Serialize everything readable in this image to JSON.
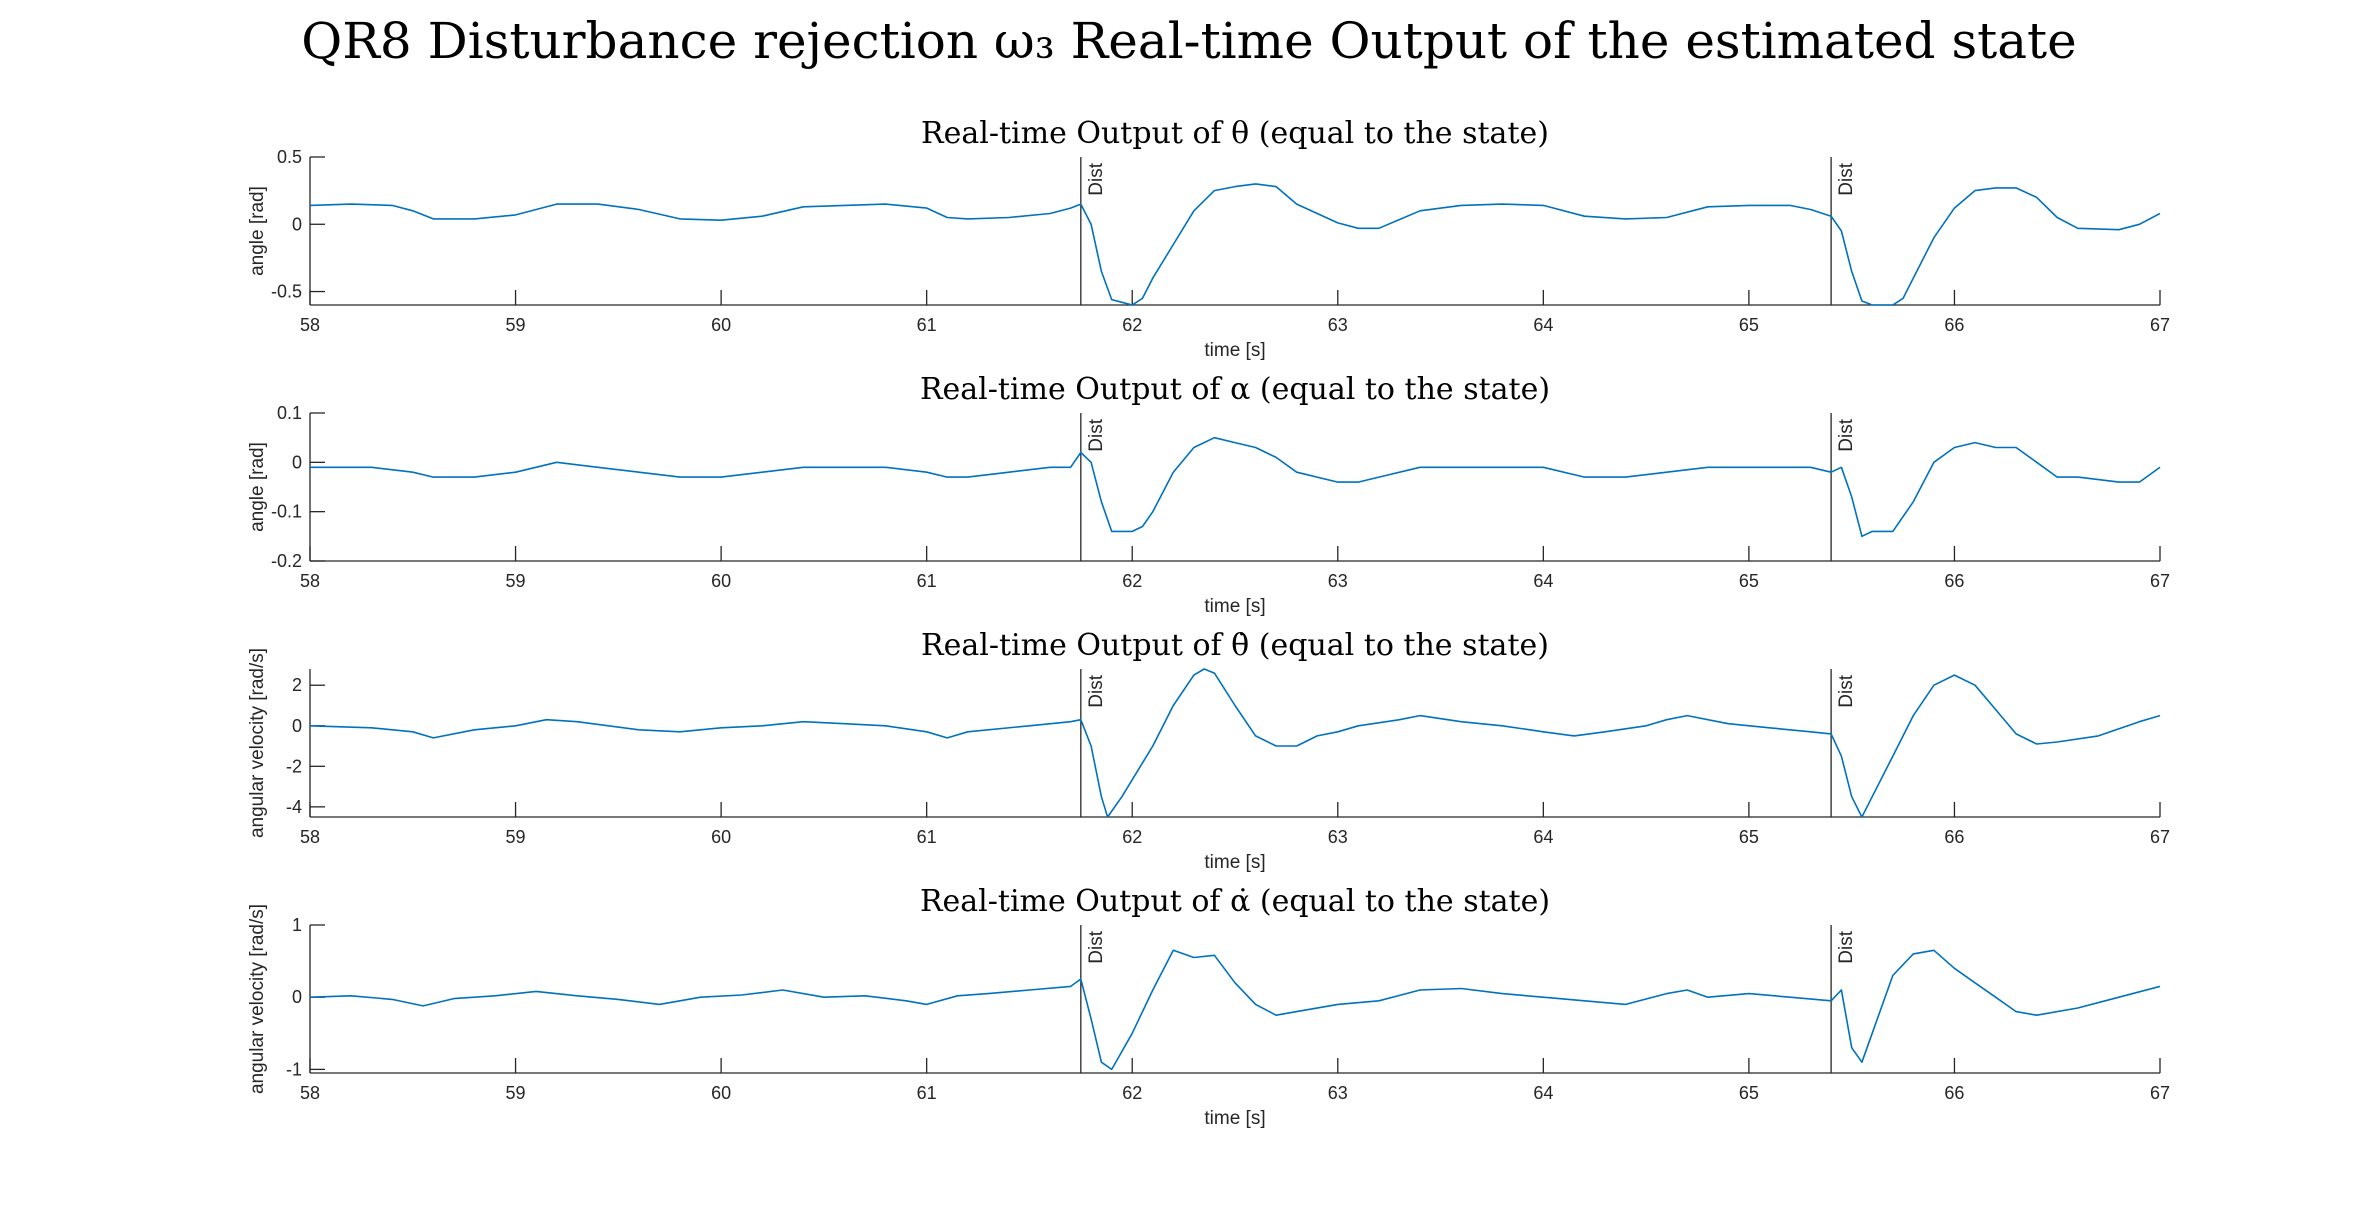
{
  "figure": {
    "suptitle": "QR8 Disturbance rejection ω₃ Real-time Output of the estimated state"
  },
  "colors": {
    "trace": "#0072BD",
    "axes": "#262626"
  },
  "chart_data": [
    {
      "type": "line",
      "title": "Real-time Output of θ (equal to the state)",
      "xlabel": "time [s]",
      "ylabel": "angle [rad]",
      "xlim": [
        58,
        67
      ],
      "ylim": [
        -0.6,
        0.5
      ],
      "xticks": [
        58,
        59,
        60,
        61,
        62,
        63,
        64,
        65,
        66,
        67
      ],
      "yticks": [
        0.5,
        0,
        -0.5
      ],
      "ytick_labels": [
        "0.5",
        "0",
        "-0.5"
      ],
      "annotations": [
        {
          "x": 61.75,
          "text": "Dist"
        },
        {
          "x": 65.4,
          "text": "Dist"
        }
      ],
      "series": [
        {
          "x": [
            58.0,
            58.2,
            58.4,
            58.5,
            58.6,
            58.8,
            59.0,
            59.2,
            59.4,
            59.6,
            59.8,
            60.0,
            60.2,
            60.4,
            60.6,
            60.8,
            61.0,
            61.1,
            61.2,
            61.4,
            61.6,
            61.7,
            61.75,
            61.8,
            61.85,
            61.9,
            61.95,
            62.0,
            62.05,
            62.1,
            62.2,
            62.3,
            62.4,
            62.5,
            62.6,
            62.7,
            62.8,
            63.0,
            63.1,
            63.2,
            63.4,
            63.6,
            63.8,
            64.0,
            64.2,
            64.4,
            64.6,
            64.8,
            65.0,
            65.2,
            65.3,
            65.4,
            65.45,
            65.5,
            65.55,
            65.6,
            65.7,
            65.75,
            65.8,
            65.9,
            66.0,
            66.1,
            66.2,
            66.3,
            66.4,
            66.5,
            66.6,
            66.8,
            66.9,
            67.0
          ],
          "y": [
            0.14,
            0.15,
            0.14,
            0.1,
            0.04,
            0.04,
            0.07,
            0.15,
            0.15,
            0.11,
            0.04,
            0.03,
            0.06,
            0.13,
            0.14,
            0.15,
            0.12,
            0.05,
            0.04,
            0.05,
            0.08,
            0.12,
            0.15,
            0.0,
            -0.35,
            -0.56,
            -0.58,
            -0.6,
            -0.55,
            -0.4,
            -0.15,
            0.1,
            0.25,
            0.28,
            0.3,
            0.28,
            0.15,
            0.01,
            -0.03,
            -0.03,
            0.1,
            0.14,
            0.15,
            0.14,
            0.06,
            0.04,
            0.05,
            0.13,
            0.14,
            0.14,
            0.11,
            0.06,
            -0.05,
            -0.35,
            -0.57,
            -0.6,
            -0.6,
            -0.55,
            -0.4,
            -0.1,
            0.12,
            0.25,
            0.27,
            0.27,
            0.2,
            0.05,
            -0.03,
            -0.04,
            0.0,
            0.08
          ]
        }
      ]
    },
    {
      "type": "line",
      "title": "Real-time Output of α (equal to the state)",
      "xlabel": "time [s]",
      "ylabel": "angle [rad]",
      "xlim": [
        58,
        67
      ],
      "ylim": [
        -0.2,
        0.1
      ],
      "xticks": [
        58,
        59,
        60,
        61,
        62,
        63,
        64,
        65,
        66,
        67
      ],
      "yticks": [
        0.1,
        0,
        -0.1,
        -0.2
      ],
      "ytick_labels": [
        "0.1",
        "0",
        "-0.1",
        "-0.2"
      ],
      "annotations": [
        {
          "x": 61.75,
          "text": "Dist"
        },
        {
          "x": 65.4,
          "text": "Dist"
        }
      ],
      "series": [
        {
          "x": [
            58.0,
            58.3,
            58.5,
            58.6,
            58.8,
            59.0,
            59.2,
            59.4,
            59.6,
            59.8,
            60.0,
            60.2,
            60.4,
            60.6,
            60.8,
            61.0,
            61.1,
            61.2,
            61.4,
            61.6,
            61.7,
            61.75,
            61.8,
            61.85,
            61.9,
            62.0,
            62.05,
            62.1,
            62.2,
            62.3,
            62.4,
            62.5,
            62.6,
            62.7,
            62.8,
            63.0,
            63.1,
            63.2,
            63.4,
            63.6,
            63.8,
            64.0,
            64.2,
            64.4,
            64.6,
            64.8,
            65.0,
            65.2,
            65.3,
            65.4,
            65.45,
            65.5,
            65.55,
            65.6,
            65.7,
            65.8,
            65.9,
            66.0,
            66.1,
            66.2,
            66.3,
            66.4,
            66.5,
            66.6,
            66.8,
            66.9,
            67.0
          ],
          "y": [
            -0.01,
            -0.01,
            -0.02,
            -0.03,
            -0.03,
            -0.02,
            0.0,
            -0.01,
            -0.02,
            -0.03,
            -0.03,
            -0.02,
            -0.01,
            -0.01,
            -0.01,
            -0.02,
            -0.03,
            -0.03,
            -0.02,
            -0.01,
            -0.01,
            0.02,
            0.0,
            -0.08,
            -0.14,
            -0.14,
            -0.13,
            -0.1,
            -0.02,
            0.03,
            0.05,
            0.04,
            0.03,
            0.01,
            -0.02,
            -0.04,
            -0.04,
            -0.03,
            -0.01,
            -0.01,
            -0.01,
            -0.01,
            -0.03,
            -0.03,
            -0.02,
            -0.01,
            -0.01,
            -0.01,
            -0.01,
            -0.02,
            -0.01,
            -0.07,
            -0.15,
            -0.14,
            -0.14,
            -0.08,
            0.0,
            0.03,
            0.04,
            0.03,
            0.03,
            0.0,
            -0.03,
            -0.03,
            -0.04,
            -0.04,
            -0.01
          ]
        }
      ]
    },
    {
      "type": "line",
      "title": "Real-time Output of θ̇ (equal to the state)",
      "xlabel": "time [s]",
      "ylabel": "angular velocity [rad/s]",
      "xlim": [
        58,
        67
      ],
      "ylim": [
        -4.5,
        2.8
      ],
      "xticks": [
        58,
        59,
        60,
        61,
        62,
        63,
        64,
        65,
        66,
        67
      ],
      "yticks": [
        2,
        0,
        -2,
        -4
      ],
      "ytick_labels": [
        "2",
        "0",
        "-2",
        "-4"
      ],
      "annotations": [
        {
          "x": 61.75,
          "text": "Dist"
        },
        {
          "x": 65.4,
          "text": "Dist"
        }
      ],
      "series": [
        {
          "x": [
            58.0,
            58.3,
            58.5,
            58.6,
            58.8,
            59.0,
            59.15,
            59.3,
            59.6,
            59.8,
            60.0,
            60.2,
            60.4,
            60.6,
            60.8,
            61.0,
            61.1,
            61.2,
            61.5,
            61.7,
            61.75,
            61.8,
            61.85,
            61.88,
            61.95,
            62.1,
            62.2,
            62.3,
            62.35,
            62.4,
            62.5,
            62.6,
            62.7,
            62.8,
            62.9,
            63.0,
            63.1,
            63.3,
            63.4,
            63.6,
            63.8,
            64.0,
            64.15,
            64.3,
            64.5,
            64.6,
            64.7,
            64.9,
            65.1,
            65.3,
            65.4,
            65.45,
            65.5,
            65.55,
            65.6,
            65.7,
            65.8,
            65.9,
            66.0,
            66.1,
            66.2,
            66.3,
            66.4,
            66.5,
            66.7,
            66.9,
            67.0
          ],
          "y": [
            0.0,
            -0.1,
            -0.3,
            -0.6,
            -0.2,
            0.0,
            0.3,
            0.2,
            -0.2,
            -0.3,
            -0.1,
            0.0,
            0.2,
            0.1,
            0.0,
            -0.3,
            -0.6,
            -0.3,
            0.0,
            0.2,
            0.3,
            -1.0,
            -3.5,
            -4.5,
            -3.5,
            -1.0,
            1.0,
            2.5,
            2.8,
            2.6,
            1.0,
            -0.5,
            -1.0,
            -1.0,
            -0.5,
            -0.3,
            0.0,
            0.3,
            0.5,
            0.2,
            0.0,
            -0.3,
            -0.5,
            -0.3,
            0.0,
            0.3,
            0.5,
            0.1,
            -0.1,
            -0.3,
            -0.4,
            -1.5,
            -3.5,
            -4.5,
            -3.5,
            -1.5,
            0.5,
            2.0,
            2.5,
            2.0,
            0.8,
            -0.4,
            -0.9,
            -0.8,
            -0.5,
            0.2,
            0.5
          ]
        }
      ]
    },
    {
      "type": "line",
      "title": "Real-time Output of α̇ (equal to the state)",
      "xlabel": "time [s]",
      "ylabel": "angular velocity [rad/s]",
      "xlim": [
        58,
        67
      ],
      "ylim": [
        -1.05,
        1.0
      ],
      "xticks": [
        58,
        59,
        60,
        61,
        62,
        63,
        64,
        65,
        66,
        67
      ],
      "yticks": [
        1,
        0,
        -1
      ],
      "ytick_labels": [
        "1",
        "0",
        "-1"
      ],
      "annotations": [
        {
          "x": 61.75,
          "text": "Dist"
        },
        {
          "x": 65.4,
          "text": "Dist"
        }
      ],
      "series": [
        {
          "x": [
            58.0,
            58.2,
            58.4,
            58.55,
            58.7,
            58.9,
            59.1,
            59.3,
            59.5,
            59.7,
            59.9,
            60.1,
            60.3,
            60.5,
            60.7,
            60.9,
            61.0,
            61.15,
            61.3,
            61.5,
            61.7,
            61.75,
            61.8,
            61.85,
            61.9,
            62.0,
            62.1,
            62.2,
            62.3,
            62.4,
            62.5,
            62.6,
            62.7,
            62.8,
            63.0,
            63.2,
            63.4,
            63.6,
            63.8,
            64.0,
            64.2,
            64.4,
            64.6,
            64.7,
            64.8,
            65.0,
            65.2,
            65.4,
            65.45,
            65.5,
            65.55,
            65.6,
            65.7,
            65.8,
            65.9,
            66.0,
            66.1,
            66.2,
            66.3,
            66.4,
            66.6,
            66.8,
            67.0
          ],
          "y": [
            0.0,
            0.02,
            -0.03,
            -0.12,
            -0.02,
            0.02,
            0.08,
            0.02,
            -0.03,
            -0.1,
            0.0,
            0.03,
            0.1,
            0.0,
            0.02,
            -0.05,
            -0.1,
            0.02,
            0.05,
            0.1,
            0.15,
            0.25,
            -0.3,
            -0.9,
            -1.0,
            -0.5,
            0.1,
            0.65,
            0.55,
            0.58,
            0.2,
            -0.1,
            -0.25,
            -0.2,
            -0.1,
            -0.05,
            0.1,
            0.12,
            0.05,
            0.0,
            -0.05,
            -0.1,
            0.05,
            0.1,
            0.0,
            0.05,
            0.0,
            -0.05,
            0.1,
            -0.7,
            -0.9,
            -0.5,
            0.3,
            0.6,
            0.65,
            0.4,
            0.2,
            0.0,
            -0.2,
            -0.25,
            -0.15,
            0.0,
            0.15
          ]
        }
      ]
    }
  ]
}
